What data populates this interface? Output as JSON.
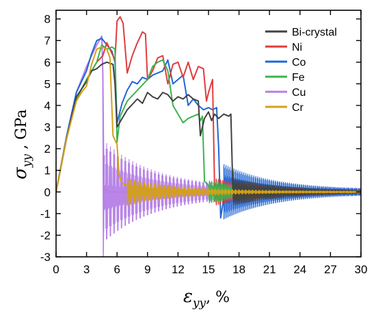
{
  "chart_data": {
    "type": "line",
    "xlabel": {
      "symbol": "ε",
      "sub": "yy",
      "unit": ", %"
    },
    "ylabel": {
      "symbol": "σ",
      "sub": "yy",
      "unit": " , GPa"
    },
    "xlim": [
      0,
      30
    ],
    "ylim": [
      -3,
      8.4
    ],
    "x_ticks": [
      "0",
      "3",
      "6",
      "9",
      "12",
      "15",
      "18",
      "21",
      "24",
      "27",
      "30"
    ],
    "y_ticks": [
      "-3",
      "-2",
      "-1",
      "0",
      "1",
      "2",
      "3",
      "4",
      "5",
      "6",
      "7",
      "8"
    ],
    "legend_position": "top-right",
    "series": [
      {
        "name": "Bi-crystal",
        "color": "#404040",
        "x": [
          0,
          1,
          2,
          3,
          3.5,
          4,
          4.5,
          5,
          5.6,
          5.8,
          6,
          7,
          8,
          8.5,
          9,
          9.5,
          10,
          10.5,
          11,
          11.5,
          12,
          12.5,
          13,
          13.5,
          14,
          14.2,
          14.6,
          15,
          15.3,
          15.6,
          16,
          16.5,
          17,
          17.2,
          17.4,
          18,
          20,
          22,
          24,
          26,
          28,
          30
        ],
        "y": [
          0,
          2.4,
          4.4,
          5.1,
          5.6,
          5.7,
          5.9,
          6.0,
          5.9,
          5.0,
          3.0,
          3.8,
          4.3,
          4.1,
          4.6,
          4.4,
          4.3,
          4.6,
          4.5,
          4.2,
          4.4,
          4.3,
          4.5,
          4.3,
          4.2,
          2.6,
          3.4,
          3.7,
          3.3,
          3.6,
          3.4,
          3.6,
          3.5,
          3.6,
          0.0,
          -0.05,
          0.05,
          -0.05,
          0.05,
          0.0,
          0.0,
          0.0
        ],
        "osc": 0.6
      },
      {
        "name": "Ni",
        "color": "#e03c3c",
        "x": [
          0,
          1,
          2,
          3,
          4,
          4.6,
          5,
          5.5,
          5.8,
          6,
          6.3,
          6.6,
          7,
          7.5,
          8,
          8.5,
          8.8,
          9,
          9.5,
          10,
          10.5,
          11,
          11.5,
          12,
          12.5,
          13,
          13.5,
          14,
          14.5,
          14.8,
          15,
          15.4,
          15.6,
          16,
          18,
          20,
          22,
          24,
          26,
          28,
          30
        ],
        "y": [
          0,
          2.4,
          4.3,
          5.2,
          6.0,
          6.3,
          6.9,
          6.4,
          6.1,
          7.9,
          8.1,
          7.8,
          5.5,
          6.3,
          6.9,
          7.4,
          7.3,
          5.2,
          5.6,
          6.2,
          6.3,
          5.0,
          5.9,
          6.0,
          5.3,
          6.0,
          5.2,
          5.8,
          5.7,
          4.2,
          4.6,
          5.2,
          0.2,
          0.0,
          0.05,
          -0.05,
          0.05,
          0.0,
          0.0,
          0.0,
          0.0
        ],
        "osc": 0.6
      },
      {
        "name": "Co",
        "color": "#1f66d6",
        "x": [
          0,
          1,
          2,
          3,
          3.5,
          4,
          4.5,
          5,
          5.5,
          5.8,
          6,
          6.5,
          7,
          7.5,
          8,
          8.5,
          9,
          9.5,
          10,
          10.5,
          11,
          11.5,
          12,
          12.5,
          13,
          13.5,
          14,
          14.5,
          15,
          15.4,
          15.8,
          16,
          16.2,
          16.5,
          17,
          18,
          20,
          22,
          24,
          26,
          28,
          30
        ],
        "y": [
          0,
          2.5,
          4.6,
          5.6,
          6.4,
          7.0,
          7.1,
          6.8,
          6.5,
          6.0,
          3.2,
          4.1,
          4.7,
          5.1,
          5.0,
          5.3,
          5.2,
          5.4,
          5.5,
          5.6,
          6.1,
          5.0,
          5.2,
          5.4,
          4.0,
          4.3,
          4.0,
          3.8,
          3.9,
          3.8,
          3.9,
          2.0,
          -1.2,
          -0.3,
          -0.5,
          0.2,
          0.1,
          0.05,
          0.05,
          0.05,
          0.1,
          0.05
        ],
        "osc": 1.2
      },
      {
        "name": "Fe",
        "color": "#3cb34e",
        "x": [
          0,
          1,
          2,
          3,
          4,
          4.5,
          5,
          5.5,
          5.8,
          6,
          6.3,
          7,
          8,
          9,
          9.5,
          10,
          10.5,
          11,
          11.5,
          12,
          12.5,
          13,
          13.5,
          14,
          14.2,
          14.4,
          14.6,
          15,
          16,
          18,
          20,
          22,
          24,
          26,
          28,
          30
        ],
        "y": [
          0,
          2.4,
          4.3,
          5.2,
          6.0,
          6.8,
          6.6,
          6.7,
          6.6,
          2.3,
          3.5,
          4.2,
          4.7,
          5.2,
          5.8,
          6.0,
          6.1,
          5.6,
          4.0,
          3.6,
          3.2,
          3.4,
          3.5,
          3.6,
          3.3,
          3.5,
          0.5,
          0.3,
          0.2,
          0.1,
          0.05,
          0.05,
          0.05,
          0.0,
          0.0,
          0.0
        ],
        "osc": 0.5
      },
      {
        "name": "Cu",
        "color": "#b57ee6",
        "x": [
          0,
          1,
          2,
          3,
          3.5,
          4,
          4.5,
          4.6,
          4.7,
          5,
          6,
          7,
          8,
          10,
          12,
          14,
          16,
          18,
          20,
          22,
          24,
          26,
          28,
          30
        ],
        "y": [
          0,
          2.5,
          4.6,
          5.8,
          6.3,
          6.8,
          7.2,
          5.5,
          0.3,
          0.0,
          0.0,
          0.0,
          0.0,
          0.0,
          0.0,
          0.0,
          0.0,
          0.0,
          0.0,
          0.0,
          0.0,
          0.0,
          0.0,
          0.0
        ],
        "osc": 2.2
      },
      {
        "name": "Cr",
        "color": "#d4a017",
        "x": [
          0,
          1,
          2,
          2.5,
          3,
          3.5,
          4,
          4.5,
          5,
          5.3,
          5.6,
          6,
          6.2,
          6.5,
          7,
          8,
          10,
          12,
          14,
          16,
          18,
          20,
          22,
          24,
          26,
          28,
          30
        ],
        "y": [
          0,
          2.4,
          4.2,
          4.6,
          4.9,
          5.9,
          6.6,
          6.7,
          6.6,
          6.2,
          2.6,
          2.2,
          0.8,
          0.4,
          0.3,
          0.2,
          0.1,
          0.05,
          0.05,
          0.0,
          0.0,
          0.0,
          0.0,
          0.0,
          0.0,
          0.0,
          0.0
        ],
        "osc": 0.6
      }
    ]
  }
}
